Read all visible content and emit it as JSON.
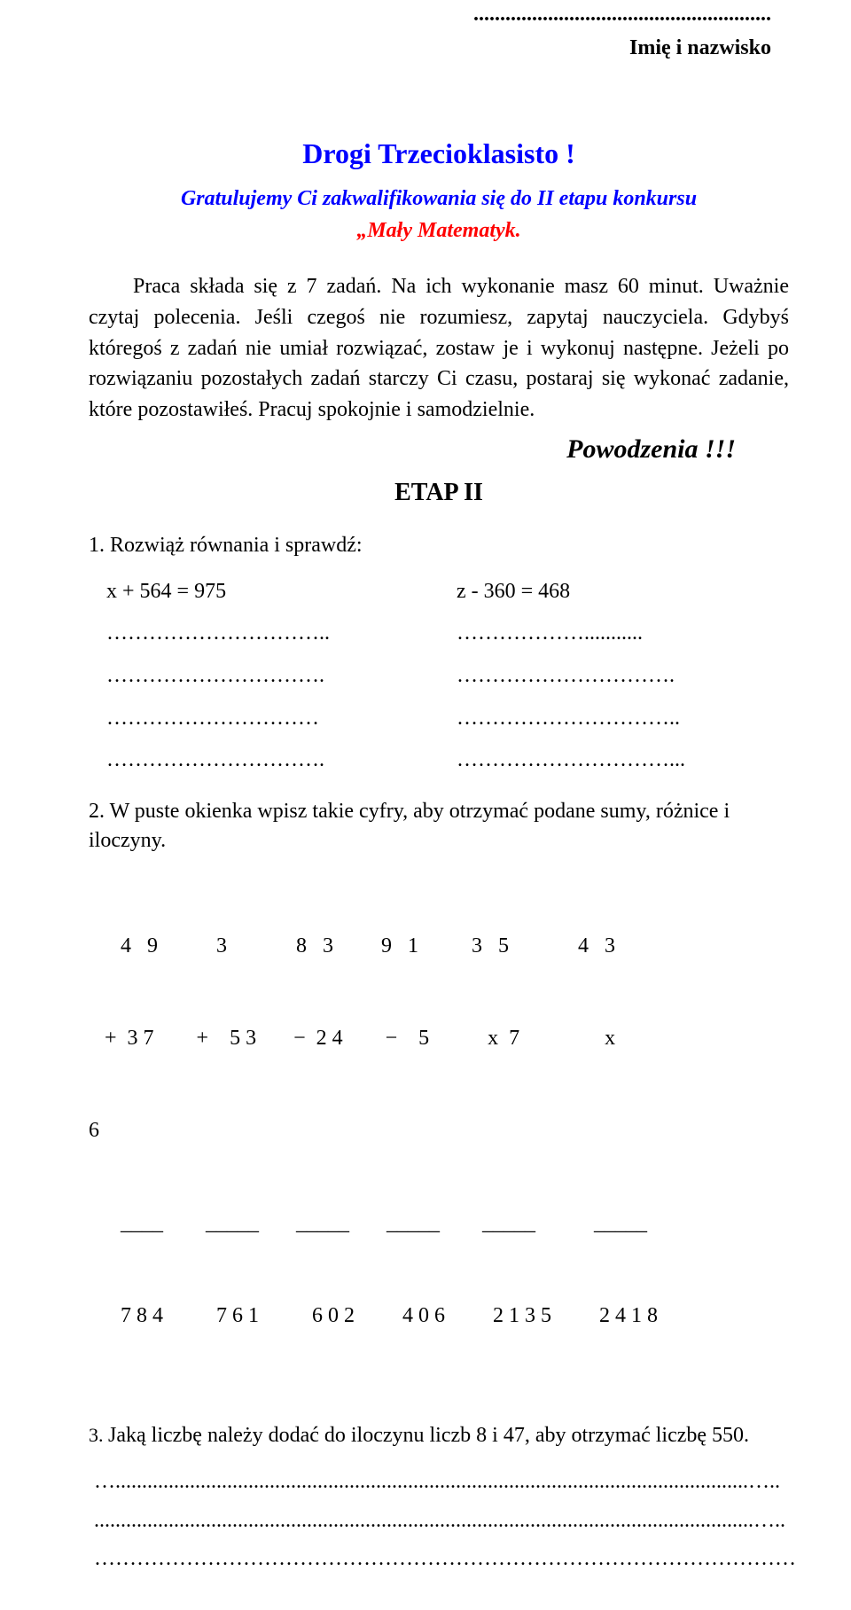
{
  "header": {
    "dots": "........................................................",
    "name_label": "Imię  i nazwisko"
  },
  "title": "Drogi Trzecioklasisto !",
  "subtitle_line1": "Gratulujemy Ci zakwalifikowania się do II etapu konkursu",
  "subtitle_line2": "„Mały Matematyk.",
  "intro": "Praca składa się z 7 zadań. Na ich wykonanie masz  60 minut. Uważnie czytaj polecenia. Jeśli czegoś nie rozumiesz, zapytaj nauczyciela. Gdybyś któregoś z zadań nie umiał rozwiązać, zostaw je i wykonuj następne. Jeżeli po rozwiązaniu pozostałych zadań starczy Ci czasu, postaraj się wykonać zadanie, które pozostawiłeś. Pracuj spokojnie i samodzielnie.",
  "good_luck": "Powodzenia !!!",
  "stage": "ETAP  II",
  "task1": {
    "text": "1.  Rozwiąż równania i sprawdź:",
    "eq_left": "x + 564 = 975",
    "eq_right": "z  - 360  = 468",
    "dots_left": [
      "…………………………..",
      "………………………….",
      "…………………………",
      "…………………………."
    ],
    "dots_right": [
      "………………...........",
      "………………………….",
      "…………………………..",
      "…………………………..."
    ]
  },
  "task2": {
    "text": "2.  W puste okienka wpisz takie cyfry, aby otrzymać podane sumy, różnice i iloczyny.",
    "row1": "      4   9           3             8   3         9   1          3   5             4   3",
    "row2": "   +  3 7        +    5 3       −  2 4        −    5           x  7                x",
    "row3": "6                                                                                      ",
    "row4": "      ____        _____       _____       _____        _____           _____",
    "row5": "      7 8 4          7 6 1          6 0 2         4 0 6         2 1 3 5         2 4 1 8"
  },
  "task3": {
    "text_prefix": "3.  ",
    "text_body": "Jaką liczbę należy dodać do iloczynu liczb 8  i  47, aby otrzymać liczbę  550.",
    "dots": [
      " ….......................................................................................................................…..",
      "............................................................................................................................…..",
      "………………………………………………………………………………………"
    ]
  },
  "colors": {
    "blue": "#0000ff",
    "red": "#ff0000",
    "text": "#000000",
    "background": "#ffffff"
  }
}
